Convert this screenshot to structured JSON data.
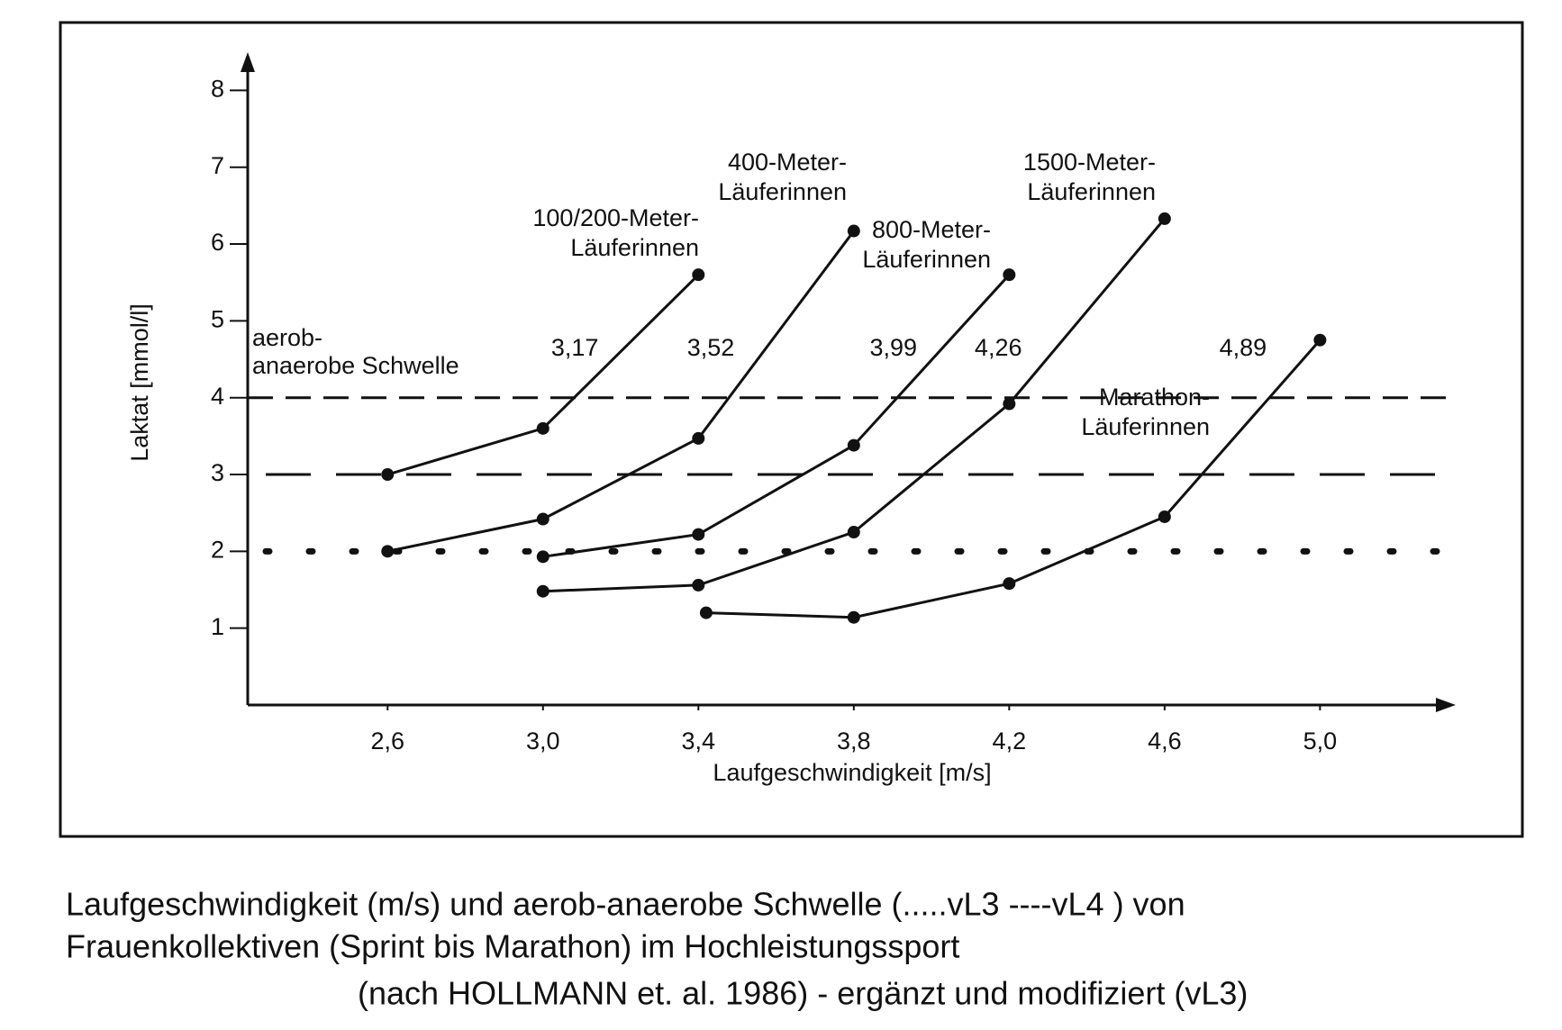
{
  "chart_data": {
    "type": "line",
    "ylabel": "Laktat [mmol/l]",
    "xlabel": "Laufgeschwindigkeit [m/s]",
    "xlim": [
      2.24,
      5.34
    ],
    "ylim": [
      0,
      8.45
    ],
    "xticks": [
      {
        "value": 2.6,
        "label": "2,6"
      },
      {
        "value": 3.0,
        "label": "3,0"
      },
      {
        "value": 3.4,
        "label": "3,4"
      },
      {
        "value": 3.8,
        "label": "3,8"
      },
      {
        "value": 4.2,
        "label": "4,2"
      },
      {
        "value": 4.6,
        "label": "4,6"
      },
      {
        "value": 5.0,
        "label": "5,0"
      }
    ],
    "yticks": [
      1,
      2,
      3,
      4,
      5,
      6,
      7,
      8
    ],
    "threshold_label": [
      "aerob-",
      "anaerobe Schwelle"
    ],
    "reference_lines": [
      {
        "value": 4,
        "style": "dashed"
      },
      {
        "value": 3,
        "style": "long-dash"
      },
      {
        "value": 2,
        "style": "dotted"
      }
    ],
    "thresholds": [
      {
        "value": 3.17,
        "label": "3,17"
      },
      {
        "value": 3.52,
        "label": "3,52"
      },
      {
        "value": 3.99,
        "label": "3,99"
      },
      {
        "value": 4.26,
        "label": "4,26"
      },
      {
        "value": 4.89,
        "label": "4,89"
      }
    ],
    "series": [
      {
        "name_lines": [
          "100/200-Meter-",
          "Läuferinnen"
        ],
        "color": "#111111",
        "x": [
          2.6,
          3.0,
          3.4
        ],
        "values": [
          3.0,
          3.6,
          5.6
        ]
      },
      {
        "name_lines": [
          "400-Meter-",
          "Läuferinnen"
        ],
        "color": "#111111",
        "x": [
          2.6,
          3.0,
          3.4,
          3.8
        ],
        "values": [
          2.0,
          2.42,
          3.47,
          6.17
        ]
      },
      {
        "name_lines": [
          "800-Meter-",
          "Läuferinnen"
        ],
        "color": "#111111",
        "x": [
          3.0,
          3.4,
          3.8,
          4.2
        ],
        "values": [
          1.93,
          2.22,
          3.38,
          5.6
        ]
      },
      {
        "name_lines": [
          "1500-Meter-",
          "Läuferinnen"
        ],
        "color": "#111111",
        "x": [
          3.0,
          3.4,
          3.8,
          4.2,
          4.6
        ],
        "values": [
          1.48,
          1.56,
          2.25,
          3.92,
          6.33
        ]
      },
      {
        "name_lines": [
          "Marathon-",
          "Läuferinnen"
        ],
        "color": "#111111",
        "x": [
          3.42,
          3.8,
          4.2,
          4.6,
          5.0
        ],
        "values": [
          1.2,
          1.14,
          1.58,
          2.45,
          4.75
        ]
      }
    ]
  },
  "caption": [
    "Laufgeschwindigkeit (m/s) und aerob-anaerobe Schwelle (.....vL3 ----vL4 ) von",
    "Frauenkollektiven (Sprint bis Marathon) im Hochleistungssport",
    "(nach HOLLMANN et. al. 1986) - ergänzt und modifiziert (vL3)"
  ]
}
